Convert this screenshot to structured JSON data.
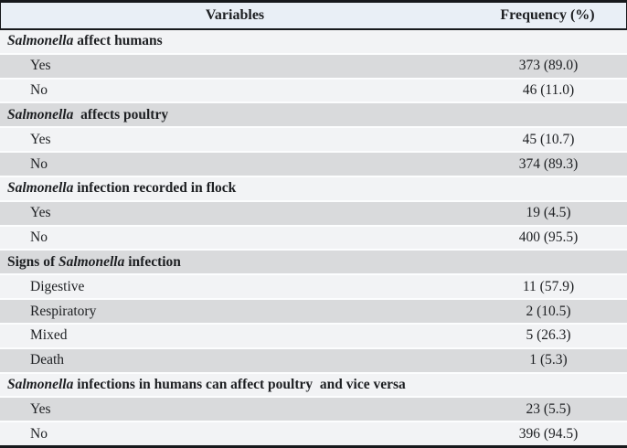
{
  "table": {
    "header": {
      "variables": "Variables",
      "frequency": "Frequency (%)"
    },
    "rows": [
      {
        "type": "section",
        "parts": [
          {
            "text": "Salmonella",
            "italic": true
          },
          {
            "text": " affect humans",
            "italic": false
          }
        ],
        "value": ""
      },
      {
        "type": "data",
        "label": "Yes",
        "value": "373 (89.0)"
      },
      {
        "type": "data",
        "label": "No",
        "value": "46 (11.0)"
      },
      {
        "type": "section",
        "parts": [
          {
            "text": "Salmonella",
            "italic": true
          },
          {
            "text": "  affects poultry",
            "italic": false
          }
        ],
        "value": ""
      },
      {
        "type": "data",
        "label": "Yes",
        "value": "45 (10.7)"
      },
      {
        "type": "data",
        "label": "No",
        "value": "374 (89.3)"
      },
      {
        "type": "section",
        "parts": [
          {
            "text": "Salmonella",
            "italic": true
          },
          {
            "text": " infection recorded in flock",
            "italic": false
          }
        ],
        "value": ""
      },
      {
        "type": "data",
        "label": "Yes",
        "value": "19 (4.5)"
      },
      {
        "type": "data",
        "label": "No",
        "value": "400 (95.5)"
      },
      {
        "type": "section",
        "parts": [
          {
            "text": "Signs of ",
            "italic": false
          },
          {
            "text": "Salmonella",
            "italic": true
          },
          {
            "text": " infection",
            "italic": false
          }
        ],
        "value": ""
      },
      {
        "type": "data",
        "label": "Digestive",
        "value": "11 (57.9)"
      },
      {
        "type": "data",
        "label": "Respiratory",
        "value": "2 (10.5)"
      },
      {
        "type": "data",
        "label": "Mixed",
        "value": "5 (26.3)"
      },
      {
        "type": "data",
        "label": "Death",
        "value": "1 (5.3)"
      },
      {
        "type": "section",
        "parts": [
          {
            "text": "Salmonella",
            "italic": true
          },
          {
            "text": " infections in humans can affect poultry  and vice versa",
            "italic": false
          }
        ],
        "value": ""
      },
      {
        "type": "data",
        "label": "Yes",
        "value": "23 (5.5)"
      },
      {
        "type": "data",
        "label": "No",
        "value": "396 (94.5)"
      }
    ],
    "colors": {
      "header_bg": "#e9eff6",
      "stripe_light": "#f2f3f5",
      "stripe_dark": "#d9dadc",
      "border_dark": "#17191c",
      "row_separator": "#fcfdfe",
      "text": "#1d1f22"
    }
  }
}
